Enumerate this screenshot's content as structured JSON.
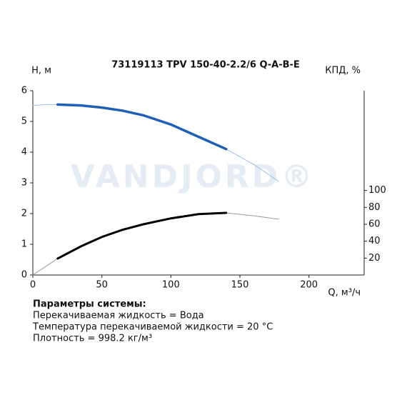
{
  "chart_data": {
    "type": "line",
    "title": "73119113 TPV 150-40-2.2/6 Q-A-B-E",
    "ylabel": "H, м",
    "y2label": "КПД, %",
    "xlabel": "Q, м³/ч",
    "watermark": "VANDJORD®",
    "xlim": [
      0,
      240
    ],
    "xticks": [
      0,
      50,
      100,
      150,
      200
    ],
    "ylim": [
      0,
      6
    ],
    "yticks": [
      0,
      1,
      2,
      3,
      4,
      5,
      6
    ],
    "y2lim": [
      0,
      218
    ],
    "y2ticks": [
      20,
      40,
      60,
      80,
      100
    ],
    "series": [
      {
        "color": "#9cc0e6",
        "width": 1,
        "x": [
          0,
          10,
          18
        ],
        "values": [
          5.52,
          5.55,
          5.55
        ]
      },
      {
        "color": "#9cc0e6",
        "width": 1,
        "x": [
          140,
          160,
          178
        ],
        "values": [
          4.1,
          3.6,
          3.05
        ]
      },
      {
        "color": "#1f5fb5",
        "width": 3.5,
        "x": [
          18,
          35,
          50,
          65,
          80,
          100,
          120,
          140
        ],
        "values": [
          5.55,
          5.52,
          5.45,
          5.35,
          5.2,
          4.9,
          4.5,
          4.1
        ]
      },
      {
        "color": "#9a9a9a",
        "width": 1,
        "axis": "y2",
        "x": [
          0,
          18
        ],
        "values": [
          0,
          19.5
        ]
      },
      {
        "color": "#9a9a9a",
        "width": 1,
        "axis": "y2",
        "x": [
          140,
          160,
          178
        ],
        "values": [
          73.5,
          70,
          66
        ]
      },
      {
        "color": "#000000",
        "width": 3,
        "axis": "y2",
        "x": [
          18,
          35,
          50,
          65,
          80,
          100,
          120,
          140
        ],
        "values": [
          19.5,
          34,
          45,
          53.5,
          60,
          67,
          72,
          73.5
        ]
      }
    ],
    "parameters": {
      "heading": "Параметры системы:",
      "lines": [
        "Перекачиваемая жидкость = Вода",
        "Температура перекачиваемой жидкости = 20 °C",
        "Плотность = 998.2 кг/м³"
      ]
    }
  }
}
